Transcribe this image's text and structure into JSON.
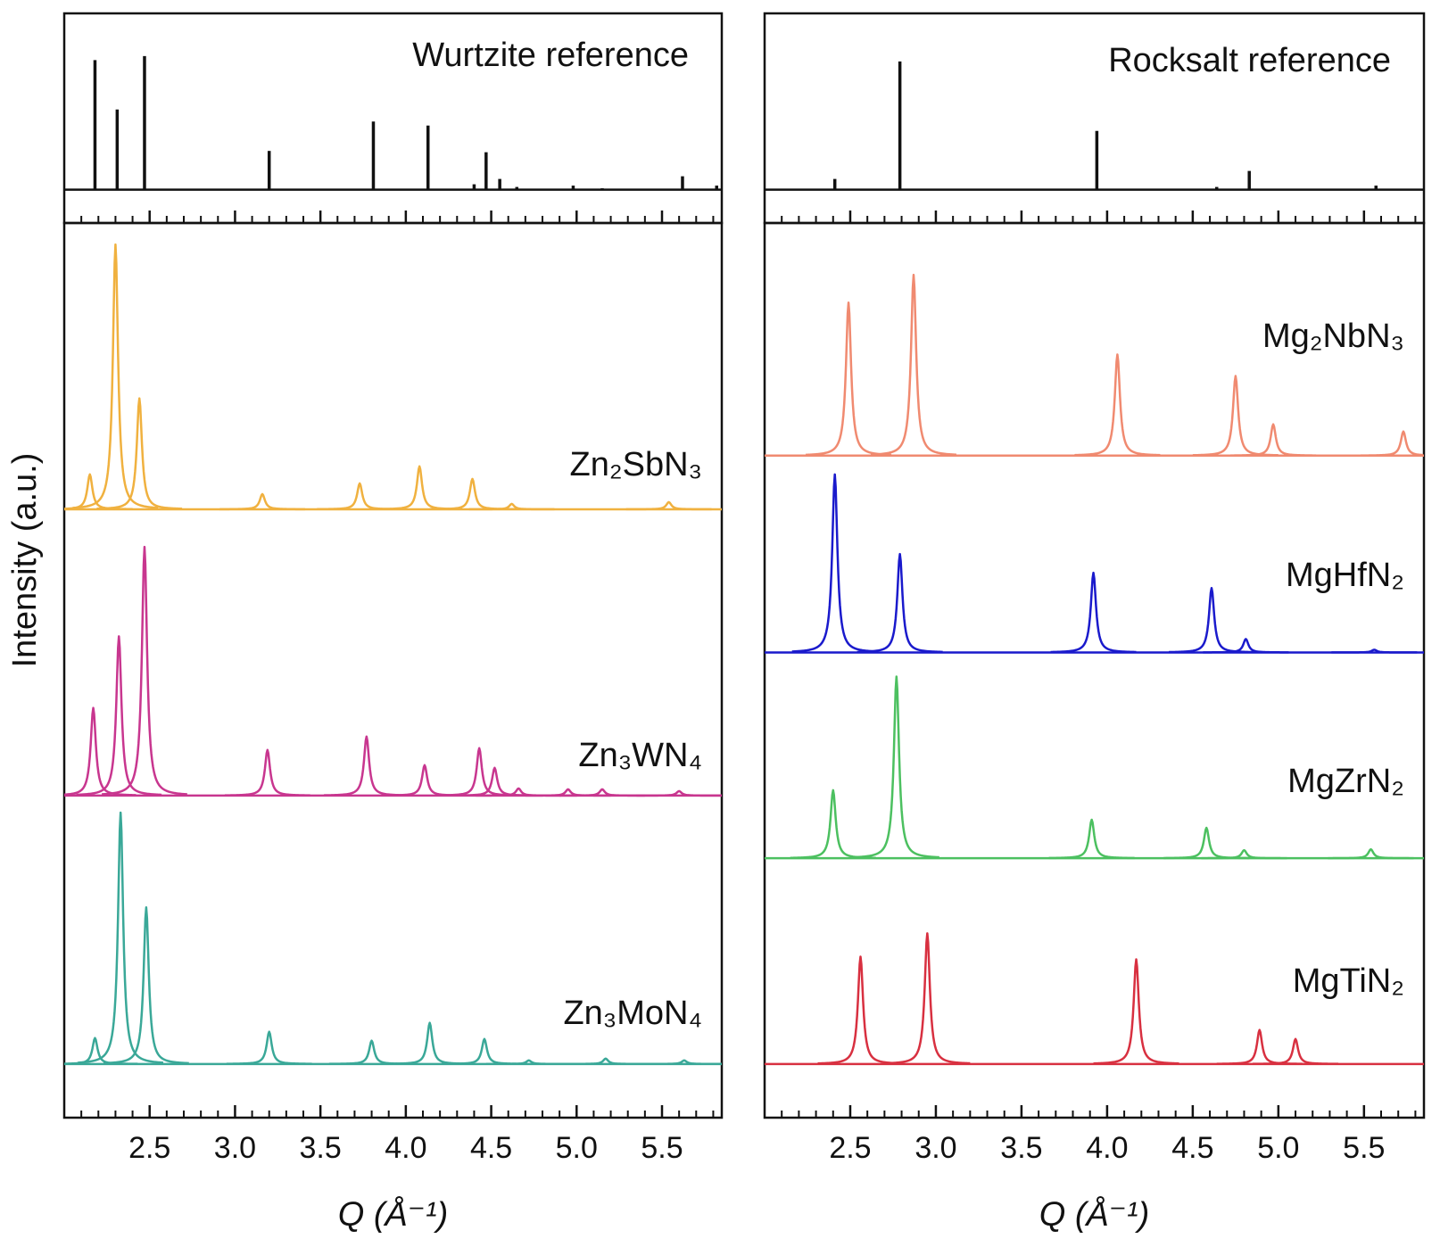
{
  "chart_data": [
    {
      "type": "stick",
      "xlim": [
        2.0,
        5.85
      ],
      "xticks": [
        2.5,
        3,
        3.5,
        4,
        4.5,
        5,
        5.5
      ],
      "xminorticks": [
        2.1,
        2.2,
        2.3,
        2.4,
        2.6,
        2.7,
        2.8,
        2.9,
        3.1,
        3.2,
        3.3,
        3.4,
        3.6,
        3.7,
        3.8,
        3.9,
        4.1,
        4.2,
        4.3,
        4.4,
        4.6,
        4.7,
        4.8,
        4.9,
        5.1,
        5.2,
        5.3,
        5.4,
        5.6,
        5.7,
        5.8
      ],
      "tick_labels": false,
      "ylim": [
        -25,
        132
      ],
      "series": [
        {
          "name": "Wurtzite reference",
          "color": "#111111",
          "baseline": 0,
          "x": [
            2.18,
            2.31,
            2.47,
            3.2,
            3.81,
            4.13,
            4.4,
            4.47,
            4.55,
            4.65,
            4.98,
            5.15,
            5.62,
            5.82
          ],
          "values": [
            97,
            60,
            100,
            29,
            51,
            48,
            4,
            28,
            8,
            2,
            3,
            1,
            10,
            3
          ]
        }
      ]
    },
    {
      "type": "peaks",
      "xlim": [
        2.0,
        5.85
      ],
      "xticks": [
        2.5,
        {
          "value": 3,
          "label": "3.0"
        },
        3.5,
        {
          "value": 4,
          "label": "4.0"
        },
        4.5,
        {
          "value": 5,
          "label": "5.0"
        },
        5.5
      ],
      "xminorticks": [
        2.1,
        2.2,
        2.3,
        2.4,
        2.6,
        2.7,
        2.8,
        2.9,
        3.1,
        3.2,
        3.3,
        3.4,
        3.6,
        3.7,
        3.8,
        3.9,
        4.1,
        4.2,
        4.3,
        4.4,
        4.6,
        4.7,
        4.8,
        4.9,
        5.1,
        5.2,
        5.3,
        5.4,
        5.6,
        5.7,
        5.8
      ],
      "tick_labels": true,
      "xlabel": "Q (Å⁻¹)",
      "ylabel": "Intensity (a.u.)",
      "ylim": [
        0,
        100
      ],
      "series": [
        {
          "name": "Zn₂SbN₃",
          "color": "#f0b13f",
          "baseline": 68,
          "x": [
            2.15,
            2.3,
            2.44,
            3.16,
            3.73,
            4.08,
            4.39,
            4.62,
            5.54
          ],
          "values": [
            3.9,
            29.6,
            12.4,
            1.7,
            2.9,
            4.8,
            3.4,
            0.6,
            0.8
          ]
        },
        {
          "name": "Zn₃WN₄",
          "color": "#c8368f",
          "baseline": 36,
          "x": [
            2.17,
            2.32,
            2.47,
            3.19,
            3.77,
            4.11,
            4.43,
            4.52,
            4.66,
            4.95,
            5.15,
            5.6
          ],
          "values": [
            9.8,
            17.8,
            27.8,
            5.1,
            6.6,
            3.4,
            5.3,
            3.1,
            0.8,
            0.7,
            0.7,
            0.5
          ]
        },
        {
          "name": "Zn₃MoN₄",
          "color": "#3aa898",
          "baseline": 6,
          "x": [
            2.18,
            2.33,
            2.48,
            3.2,
            3.8,
            4.14,
            4.46,
            4.72,
            5.17,
            5.63
          ],
          "values": [
            2.9,
            28.1,
            17.5,
            3.6,
            2.6,
            4.6,
            2.8,
            0.4,
            0.6,
            0.4
          ]
        }
      ]
    },
    {
      "type": "stick",
      "xlim": [
        2.0,
        5.85
      ],
      "xticks": [
        2.5,
        3,
        3.5,
        4,
        4.5,
        5,
        5.5
      ],
      "xminorticks": [
        2.1,
        2.2,
        2.3,
        2.4,
        2.6,
        2.7,
        2.8,
        2.9,
        3.1,
        3.2,
        3.3,
        3.4,
        3.6,
        3.7,
        3.8,
        3.9,
        4.1,
        4.2,
        4.3,
        4.4,
        4.6,
        4.7,
        4.8,
        4.9,
        5.1,
        5.2,
        5.3,
        5.4,
        5.6,
        5.7,
        5.8
      ],
      "tick_labels": false,
      "ylim": [
        -25,
        132
      ],
      "series": [
        {
          "name": "Rocksalt reference",
          "color": "#111111",
          "baseline": 0,
          "x": [
            2.41,
            2.79,
            3.94,
            4.64,
            4.83,
            5.57
          ],
          "values": [
            8,
            96,
            44,
            2,
            14,
            3
          ]
        }
      ]
    },
    {
      "type": "peaks",
      "xlim": [
        2.0,
        5.85
      ],
      "xticks": [
        2.5,
        {
          "value": 3,
          "label": "3.0"
        },
        3.5,
        {
          "value": 4,
          "label": "4.0"
        },
        4.5,
        {
          "value": 5,
          "label": "5.0"
        },
        5.5
      ],
      "xminorticks": [
        2.1,
        2.2,
        2.3,
        2.4,
        2.6,
        2.7,
        2.8,
        2.9,
        3.1,
        3.2,
        3.3,
        3.4,
        3.6,
        3.7,
        3.8,
        3.9,
        4.1,
        4.2,
        4.3,
        4.4,
        4.6,
        4.7,
        4.8,
        4.9,
        5.1,
        5.2,
        5.3,
        5.4,
        5.6,
        5.7,
        5.8
      ],
      "tick_labels": true,
      "xlabel": "Q (Å⁻¹)",
      "ylim": [
        0,
        100
      ],
      "series": [
        {
          "name": "Mg₂NbN₃",
          "color": "#f08a70",
          "baseline": 74,
          "x": [
            2.49,
            2.87,
            4.06,
            4.75,
            4.97,
            5.73
          ],
          "values": [
            17.1,
            20.2,
            11.3,
            8.9,
            3.5,
            2.7
          ]
        },
        {
          "name": "MgHfN₂",
          "color": "#1a1acc",
          "baseline": 52,
          "x": [
            2.41,
            2.79,
            3.92,
            4.61,
            4.81,
            5.56
          ],
          "values": [
            19.9,
            11.0,
            8.9,
            7.2,
            1.5,
            0.3
          ]
        },
        {
          "name": "MgZrN₂",
          "color": "#4cc060",
          "baseline": 29,
          "x": [
            2.4,
            2.77,
            3.91,
            4.58,
            4.8,
            5.54
          ],
          "values": [
            7.6,
            20.3,
            4.3,
            3.4,
            0.9,
            1.0
          ]
        },
        {
          "name": "MgTiN₂",
          "color": "#d83040",
          "baseline": 6,
          "x": [
            2.56,
            2.95,
            4.17,
            4.89,
            5.1
          ],
          "values": [
            12.0,
            14.6,
            11.7,
            3.8,
            2.8
          ]
        }
      ]
    }
  ]
}
